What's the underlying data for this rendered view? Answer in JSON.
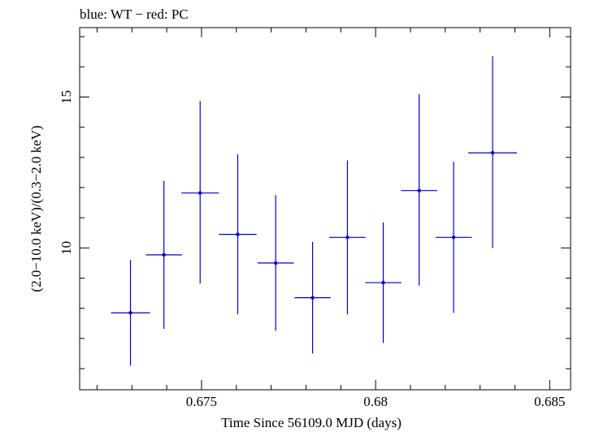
{
  "header": {
    "legend_text": "blue: WT − red: PC"
  },
  "chart_data": {
    "type": "scatter",
    "title": "",
    "xlabel": "Time Since 56109.0 MJD (days)",
    "ylabel": "(2.0−10.0 keV)/(0.3−2.0 keV)",
    "xlim": [
      0.6715,
      0.6856
    ],
    "ylim": [
      5.3,
      17.3
    ],
    "x_ticks": [
      {
        "value": 0.675,
        "label": "0.675"
      },
      {
        "value": 0.68,
        "label": "0.68"
      },
      {
        "value": 0.685,
        "label": "0.685"
      }
    ],
    "y_ticks": [
      {
        "value": 10,
        "label": "10"
      },
      {
        "value": 15,
        "label": "15"
      }
    ],
    "grid": false,
    "series": [
      {
        "color": "#0000cc",
        "points": [
          {
            "x": 0.67296,
            "xerr": 0.00056,
            "y": 7.85,
            "yerr_lo": 1.75,
            "yerr_hi": 1.75
          },
          {
            "x": 0.67392,
            "xerr": 0.00052,
            "y": 9.77,
            "yerr_lo": 2.45,
            "yerr_hi": 2.45
          },
          {
            "x": 0.67496,
            "xerr": 0.00054,
            "y": 11.82,
            "yerr_lo": 3.0,
            "yerr_hi": 3.05
          },
          {
            "x": 0.67604,
            "xerr": 0.00054,
            "y": 10.45,
            "yerr_lo": 2.65,
            "yerr_hi": 2.65
          },
          {
            "x": 0.67713,
            "xerr": 0.00052,
            "y": 9.5,
            "yerr_lo": 2.25,
            "yerr_hi": 2.25
          },
          {
            "x": 0.67819,
            "xerr": 0.00052,
            "y": 8.35,
            "yerr_lo": 1.85,
            "yerr_hi": 1.85
          },
          {
            "x": 0.67919,
            "xerr": 0.00052,
            "y": 10.35,
            "yerr_lo": 2.55,
            "yerr_hi": 2.55
          },
          {
            "x": 0.68022,
            "xerr": 0.00052,
            "y": 8.85,
            "yerr_lo": 2.0,
            "yerr_hi": 2.0
          },
          {
            "x": 0.68125,
            "xerr": 0.00052,
            "y": 11.9,
            "yerr_lo": 3.15,
            "yerr_hi": 3.2
          },
          {
            "x": 0.68224,
            "xerr": 0.00052,
            "y": 10.35,
            "yerr_lo": 2.5,
            "yerr_hi": 2.5
          },
          {
            "x": 0.68336,
            "xerr": 0.0007,
            "y": 13.15,
            "yerr_lo": 3.15,
            "yerr_hi": 3.2
          }
        ]
      }
    ]
  }
}
